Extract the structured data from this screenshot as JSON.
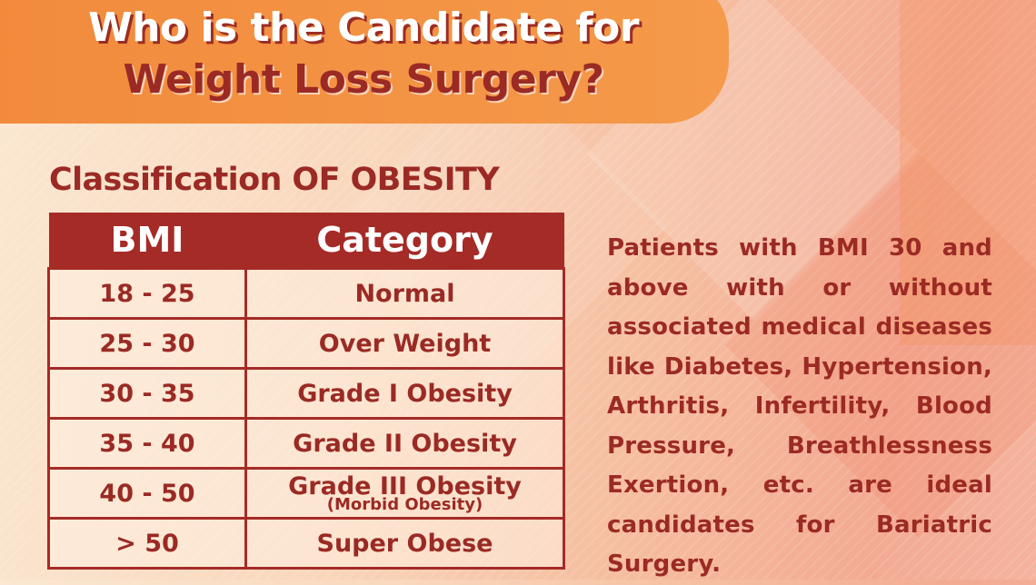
{
  "title": {
    "line1": "Who is the Candidate for",
    "line2": "Weight Loss Surgery?"
  },
  "section_title": "Classification OF OBESITY",
  "table": {
    "headers": [
      "BMI",
      "Category"
    ],
    "rows": [
      {
        "bmi": "18 - 25",
        "category": "Normal",
        "note": ""
      },
      {
        "bmi": "25 - 30",
        "category": "Over Weight",
        "note": ""
      },
      {
        "bmi": "30 - 35",
        "category": "Grade I Obesity",
        "note": ""
      },
      {
        "bmi": "35 - 40",
        "category": "Grade II Obesity",
        "note": ""
      },
      {
        "bmi": "40 - 50",
        "category": "Grade III Obesity",
        "note": "(Morbid Obesity)"
      },
      {
        "bmi": "> 50",
        "category": "Super Obese",
        "note": ""
      }
    ]
  },
  "paragraph": "Patients with BMI 30 and above with or without associated medical diseases like Diabetes, Hypertension, Arthritis, Infertility, Blood Pressure, Breathlessness Exertion, etc. are ideal candidates for Bariatric Surgery.",
  "colors": {
    "accent_orange": "#f28a3c",
    "maroon": "#9b2a24",
    "background_peach": "#f9d8bd"
  }
}
